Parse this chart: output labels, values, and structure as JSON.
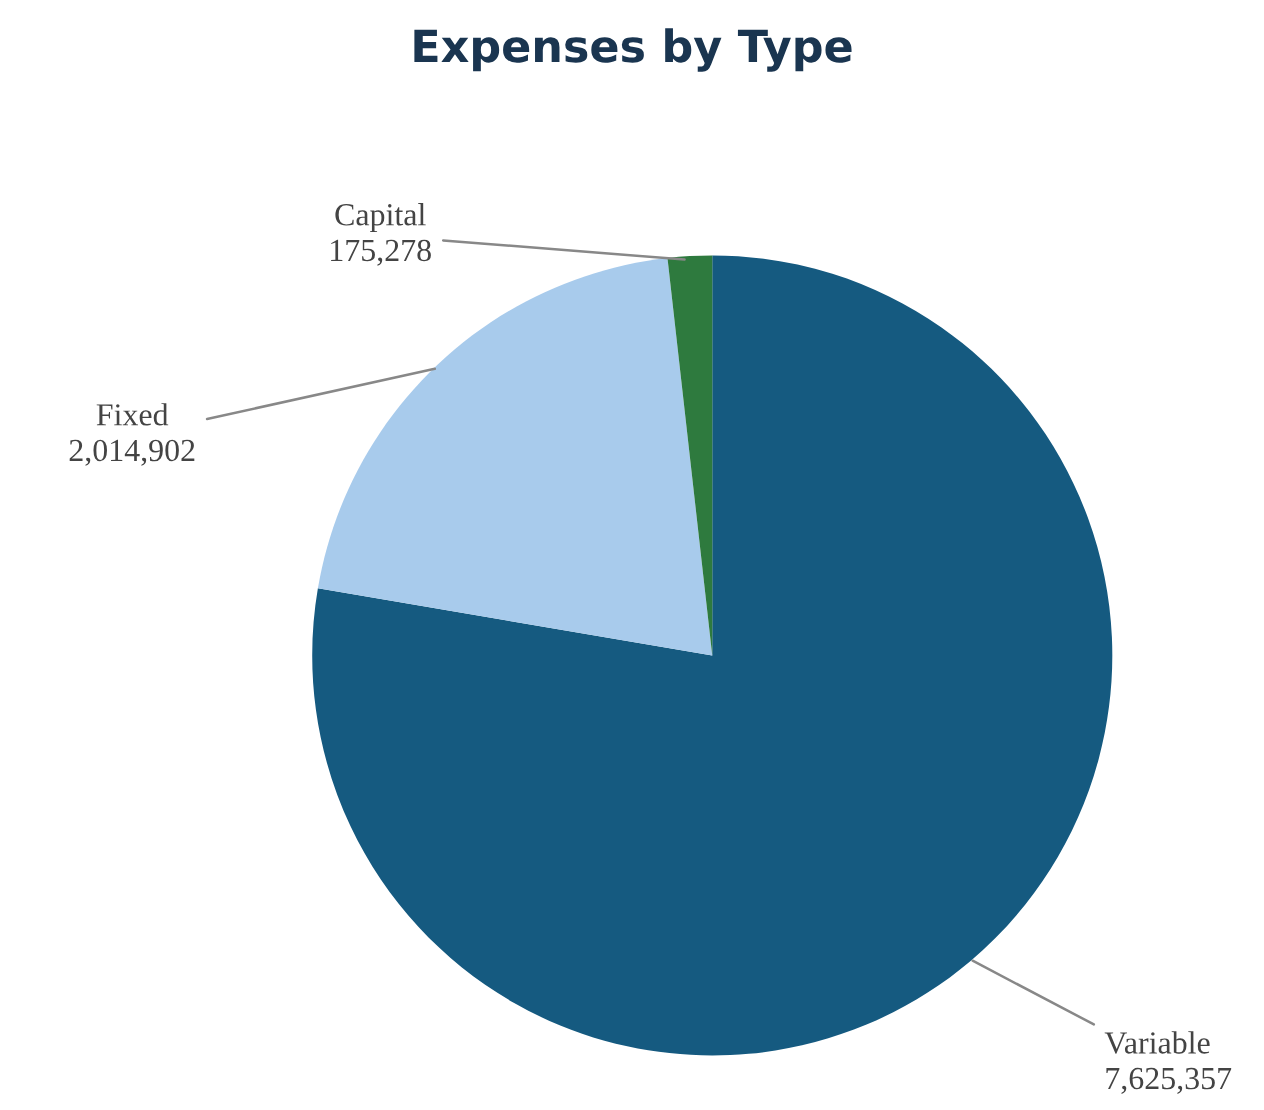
{
  "chart_data": {
    "type": "pie",
    "title": "Expenses by Type",
    "categories": [
      "Variable",
      "Fixed",
      "Capital"
    ],
    "values": [
      7625357,
      2014902,
      175278
    ],
    "value_labels": [
      "7,625,357",
      "2,014,902",
      "175,278"
    ],
    "colors": [
      "#155a80",
      "#a8cbec",
      "#2e7a3e"
    ],
    "legend": false
  }
}
